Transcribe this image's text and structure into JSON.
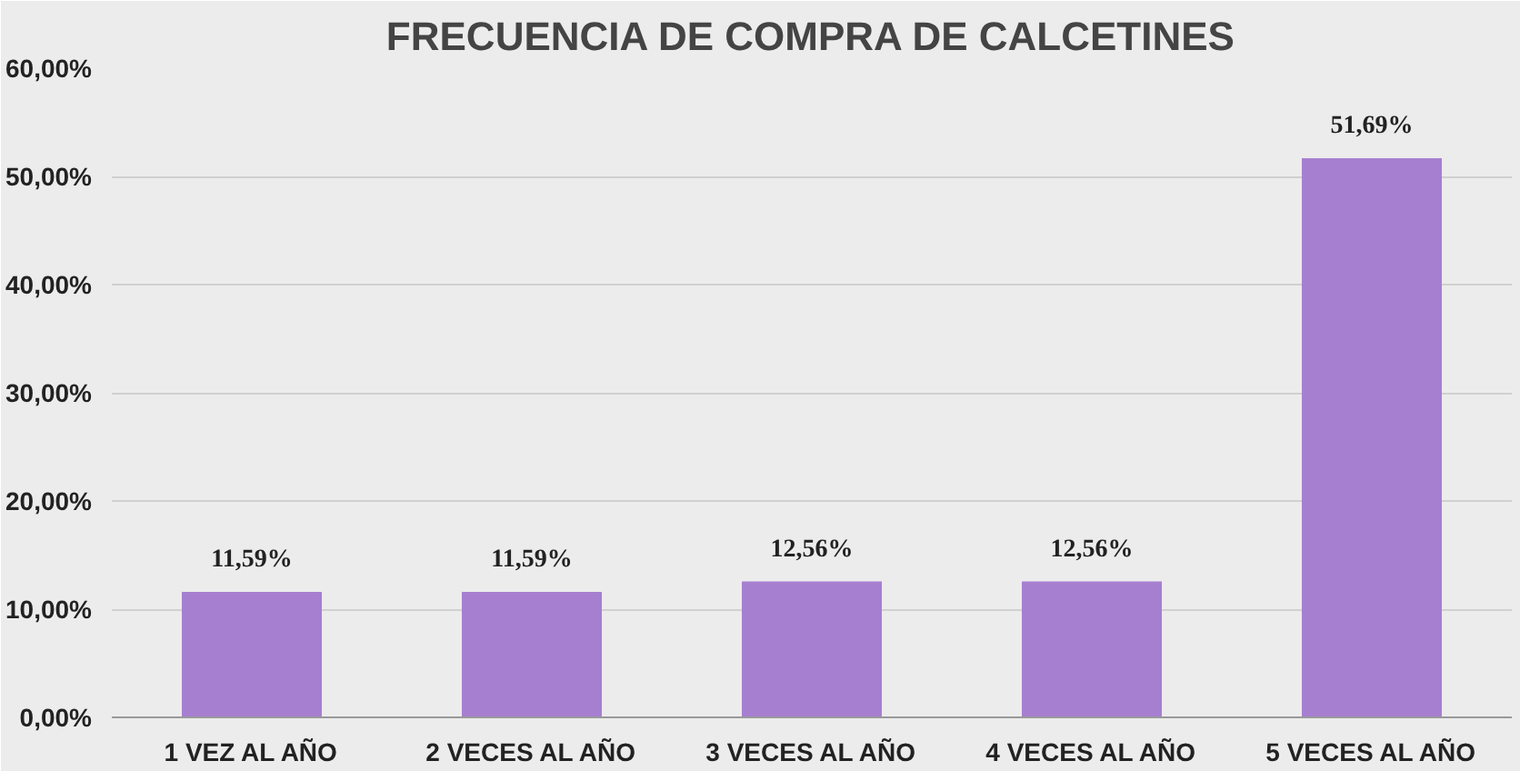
{
  "chart_data": {
    "type": "bar",
    "title": "FRECUENCIA DE COMPRA DE CALCETINES",
    "categories": [
      "1 VEZ AL AÑO",
      "2 VECES AL AÑO",
      "3 VECES AL AÑO",
      "4 VECES AL AÑO",
      "5 VECES AL AÑO"
    ],
    "values": [
      11.59,
      11.59,
      12.56,
      12.56,
      51.69
    ],
    "value_labels": [
      "11,59%",
      "11,59%",
      "12,56%",
      "12,56%",
      "51,69%"
    ],
    "color": "#a77fd0",
    "ylim": [
      0,
      60
    ],
    "yticks": [
      {
        "value": 0,
        "label": "0,00%"
      },
      {
        "value": 10,
        "label": "10,00%"
      },
      {
        "value": 20,
        "label": "20,00%"
      },
      {
        "value": 30,
        "label": "30,00%"
      },
      {
        "value": 40,
        "label": "40,00%"
      },
      {
        "value": 50,
        "label": "50,00%"
      },
      {
        "value": 60,
        "label": "60,00%"
      }
    ],
    "grid": "y"
  }
}
